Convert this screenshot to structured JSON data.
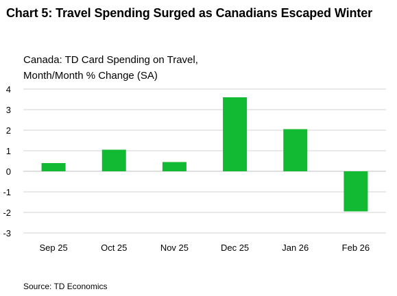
{
  "title": "Chart 5: Travel Spending Surged as Canadians Escaped Winter",
  "subtitle_line1": "Canada: TD Card Spending on Travel,",
  "subtitle_line2": "Month/Month % Change (SA)",
  "source": "Source: TD Economics",
  "colors": {
    "bar": "#11BA32",
    "grid": "#D3D3D3",
    "zero_line": "#BFBFBF"
  },
  "chart_data": {
    "type": "bar",
    "categories": [
      "Sep 25",
      "Oct 25",
      "Nov 25",
      "Dec 25",
      "Jan 26",
      "Feb 26"
    ],
    "values": [
      0.4,
      1.05,
      0.45,
      3.6,
      2.05,
      -1.95
    ],
    "ylim": [
      -3,
      4
    ],
    "yticks": [
      4,
      3,
      2,
      1,
      0,
      -1,
      -2,
      -3
    ],
    "title": "Chart 5: Travel Spending Surged as Canadians Escaped Winter",
    "ylabel": "Canada: TD Card Spending on Travel, Month/Month % Change (SA)",
    "xlabel": "",
    "grid": true,
    "legend": "none"
  }
}
